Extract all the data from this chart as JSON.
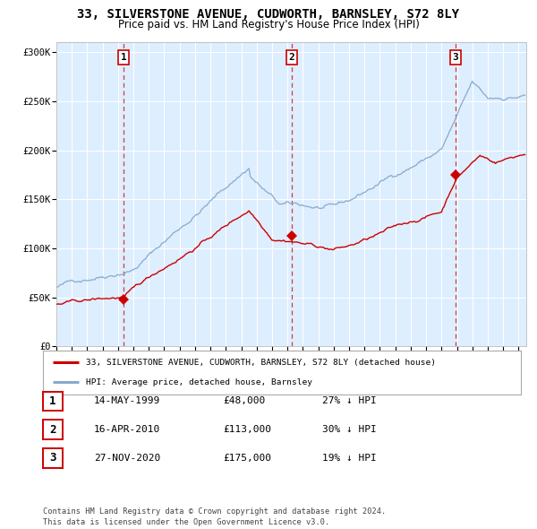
{
  "title": "33, SILVERSTONE AVENUE, CUDWORTH, BARNSLEY, S72 8LY",
  "subtitle": "Price paid vs. HM Land Registry's House Price Index (HPI)",
  "title_fontsize": 10,
  "subtitle_fontsize": 8.5,
  "bg_color": "#ddeeff",
  "grid_color": "#ffffff",
  "red_line_color": "#cc0000",
  "blue_line_color": "#88aacc",
  "sale1_date": 1999.37,
  "sale1_price": 48000,
  "sale2_date": 2010.29,
  "sale2_price": 113000,
  "sale3_date": 2020.91,
  "sale3_price": 175000,
  "xmin": 1995,
  "xmax": 2025.5,
  "ymin": 0,
  "ymax": 310000,
  "yticks": [
    0,
    50000,
    100000,
    150000,
    200000,
    250000,
    300000
  ],
  "legend_entry1": "33, SILVERSTONE AVENUE, CUDWORTH, BARNSLEY, S72 8LY (detached house)",
  "legend_entry2": "HPI: Average price, detached house, Barnsley",
  "table_entries": [
    {
      "num": "1",
      "date": "14-MAY-1999",
      "price": "£48,000",
      "hpi": "27% ↓ HPI"
    },
    {
      "num": "2",
      "date": "16-APR-2010",
      "price": "£113,000",
      "hpi": "30% ↓ HPI"
    },
    {
      "num": "3",
      "date": "27-NOV-2020",
      "price": "£175,000",
      "hpi": "19% ↓ HPI"
    }
  ],
  "footer": "Contains HM Land Registry data © Crown copyright and database right 2024.\nThis data is licensed under the Open Government Licence v3.0."
}
